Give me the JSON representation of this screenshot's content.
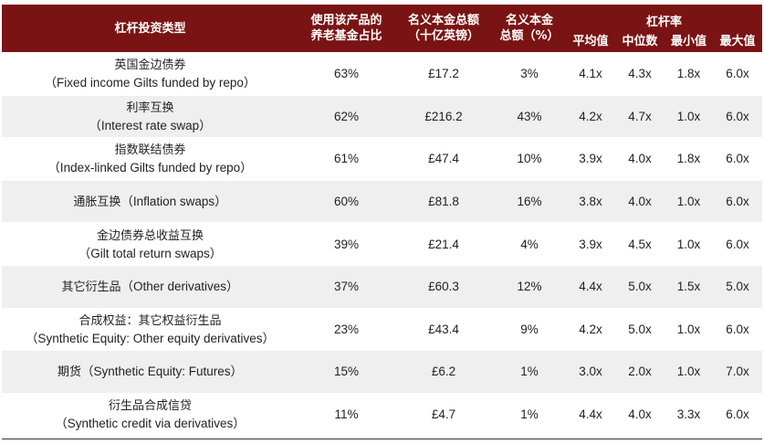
{
  "headers": {
    "type": "杠杆投资类型",
    "share_line1": "使用该产品的",
    "share_line2": "养老基金占比",
    "notional_line1": "名义本金总额",
    "notional_line2": "（十亿英镑）",
    "pct_line1": "名义本金",
    "pct_line2": "总额（%）",
    "leverage": "杠杆率",
    "mean": "平均值",
    "median": "中位数",
    "min": "最小值",
    "max": "最大值"
  },
  "rows": [
    {
      "zh": "英国金边债券",
      "en": "（Fixed income Gilts funded by repo）",
      "share": "63%",
      "notional": "£17.2",
      "pct": "3%",
      "mean": "4.1x",
      "median": "4.3x",
      "min": "1.8x",
      "max": "6.0x"
    },
    {
      "zh": "利率互换",
      "en": "（Interest rate swap）",
      "share": "62%",
      "notional": "£216.2",
      "pct": "43%",
      "mean": "4.2x",
      "median": "4.7x",
      "min": "1.0x",
      "max": "6.0x"
    },
    {
      "zh": "指数联结债券",
      "en": "（Index-linked Gilts funded by repo）",
      "share": "61%",
      "notional": "£47.4",
      "pct": "10%",
      "mean": "3.9x",
      "median": "4.0x",
      "min": "1.8x",
      "max": "6.0x"
    },
    {
      "zh": "通胀互换",
      "en": "（Inflation swaps）",
      "share": "60%",
      "notional": "£81.8",
      "pct": "16%",
      "mean": "3.8x",
      "median": "4.0x",
      "min": "1.0x",
      "max": "6.0x"
    },
    {
      "zh": "金边债券总收益互换",
      "en": "（Gilt total return swaps）",
      "share": "39%",
      "notional": "£21.4",
      "pct": "4%",
      "mean": "3.9x",
      "median": "4.5x",
      "min": "1.0x",
      "max": "6.0x"
    },
    {
      "zh": "其它衍生品",
      "en": "（Other derivatives）",
      "share": "37%",
      "notional": "£60.3",
      "pct": "12%",
      "mean": "4.4x",
      "median": "5.0x",
      "min": "1.5x",
      "max": "5.0x"
    },
    {
      "zh": "合成权益：其它权益衍生品",
      "en": "（Synthetic Equity: Other equity derivatives）",
      "share": "23%",
      "notional": "£43.4",
      "pct": "9%",
      "mean": "4.2x",
      "median": "5.0x",
      "min": "1.0x",
      "max": "6.0x"
    },
    {
      "zh": "期货",
      "en": "（Synthetic Equity: Futures）",
      "share": "15%",
      "notional": "£6.2",
      "pct": "1%",
      "mean": "3.0x",
      "median": "2.0x",
      "min": "1.0x",
      "max": "7.0x"
    },
    {
      "zh": "衍生品合成信贷",
      "en": "（Synthetic credit via derivatives）",
      "share": "11%",
      "notional": "£4.7",
      "pct": "1%",
      "mean": "4.4x",
      "median": "4.0x",
      "min": "3.3x",
      "max": "6.0x"
    }
  ],
  "inline_rows": [
    3,
    5,
    7
  ],
  "colors": {
    "header_bg": "#7a1414",
    "row_alt_bg": "#efefef"
  }
}
